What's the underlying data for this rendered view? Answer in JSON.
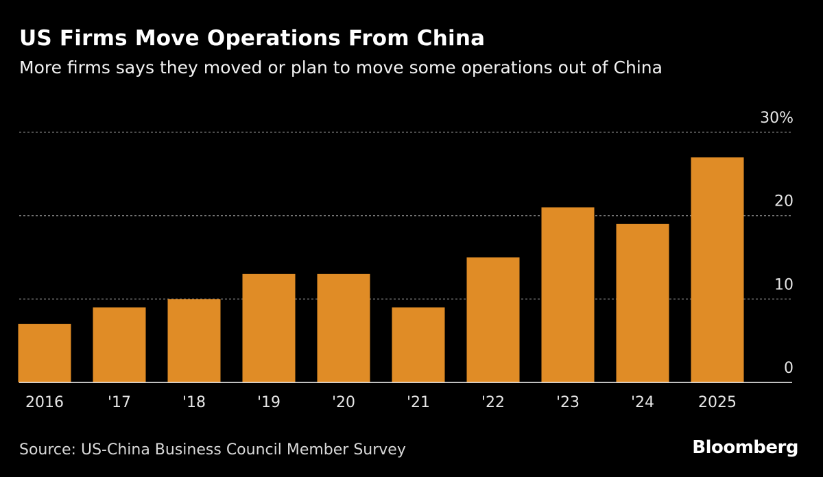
{
  "header": {
    "title": "US Firms Move Operations From China",
    "subtitle": "More firms says they moved or plan to move some operations out of China"
  },
  "footer": {
    "source": "Source: US-China Business Council Member Survey",
    "brand": "Bloomberg"
  },
  "colors": {
    "bar": "#e08c26",
    "background": "#000000",
    "grid": "#7a7a7a",
    "axis": "#ffffff",
    "text": "#ffffff"
  },
  "chart_data": {
    "type": "bar",
    "categories": [
      "2016",
      "'17",
      "'18",
      "'19",
      "'20",
      "'21",
      "'22",
      "'23",
      "'24",
      "2025"
    ],
    "values": [
      7,
      9,
      10,
      13,
      13,
      9,
      15,
      21,
      19,
      27
    ],
    "title": "US Firms Move Operations From China",
    "subtitle": "More firms says they moved or plan to move some operations out of China",
    "xlabel": "",
    "ylabel": "",
    "ylim": [
      0,
      30
    ],
    "yticks": [
      0,
      10,
      20,
      30
    ],
    "ytick_labels": [
      "0",
      "10",
      "20",
      "30%"
    ],
    "y_axis_side": "right",
    "grid": "horizontal dotted",
    "legend": "none"
  }
}
